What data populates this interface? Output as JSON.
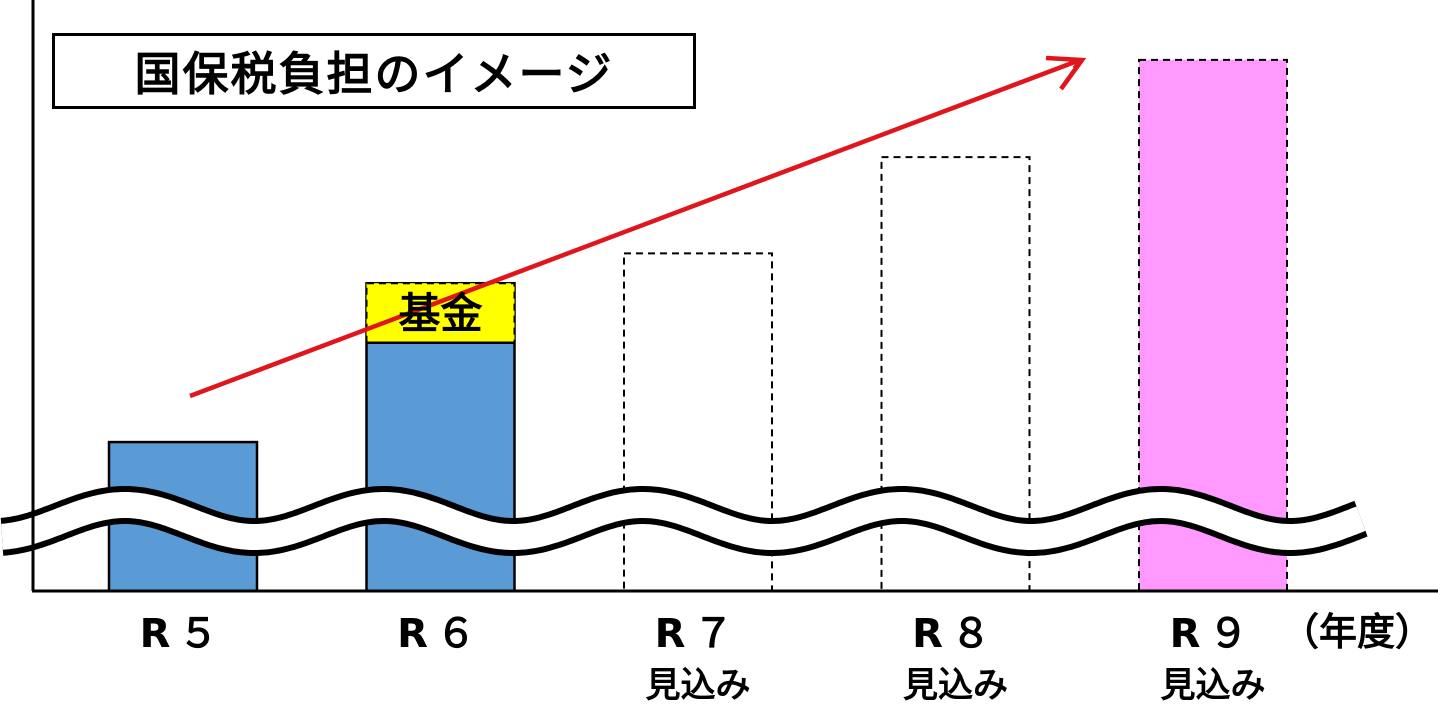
{
  "chart_data": {
    "type": "bar",
    "title": "国保税負担のイメージ",
    "categories": [
      "R５",
      "R６",
      "R７",
      "R８",
      "R９"
    ],
    "category_sublabels": [
      "",
      "",
      "見込み",
      "見込み",
      "見込み"
    ],
    "series": [
      {
        "values": [
          150,
          310,
          340,
          437,
          535
        ],
        "segment_label": "",
        "fund_segment": {
          "category_index": 1,
          "label": "基金",
          "start": 250,
          "end": 310
        }
      }
    ],
    "bar_styles": [
      {
        "fill": "#5B9BD5",
        "stroke": "#000000",
        "dashed": false
      },
      {
        "fill": "#5B9BD5",
        "stroke": "#000000",
        "dashed": false
      },
      {
        "fill": "#FFFFFF",
        "stroke": "#000000",
        "dashed": true
      },
      {
        "fill": "#FFFFFF",
        "stroke": "#000000",
        "dashed": true
      },
      {
        "fill": "#FF99FF",
        "stroke": "#000000",
        "dashed": true
      }
    ],
    "fund_color": "#FFFF00",
    "trend_arrow_color": "#E0161C",
    "xlabel": "（年度）",
    "ylabel": "",
    "ylim": [
      0,
      560
    ],
    "axis_break": true,
    "grid": false
  }
}
